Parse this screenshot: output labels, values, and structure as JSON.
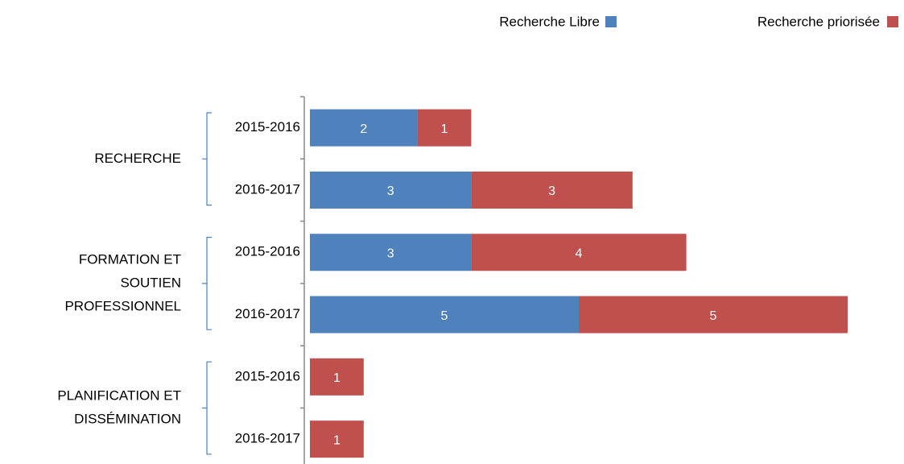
{
  "chart_data": {
    "type": "stacked-bar-horizontal",
    "groups": [
      {
        "lines": [
          "RECHERCHE"
        ]
      },
      {
        "lines": [
          "FORMATION ET",
          "SOUTIEN",
          "PROFESSIONNEL"
        ]
      },
      {
        "lines": [
          "PLANIFICATION ET",
          "DISSÉMINATION"
        ]
      }
    ],
    "categories": [
      "2015-2016",
      "2016-2017",
      "2015-2016",
      "2016-2017",
      "2015-2016",
      "2016-2017"
    ],
    "series": [
      {
        "name": "Recherche Libre",
        "color": "#4f81bd",
        "values": [
          2,
          3,
          3,
          5,
          null,
          null
        ]
      },
      {
        "name": "Recherche priorisée",
        "color": "#c0504d",
        "values": [
          1,
          3,
          4,
          5,
          1,
          1
        ]
      }
    ],
    "xlim": [
      0,
      10
    ]
  }
}
